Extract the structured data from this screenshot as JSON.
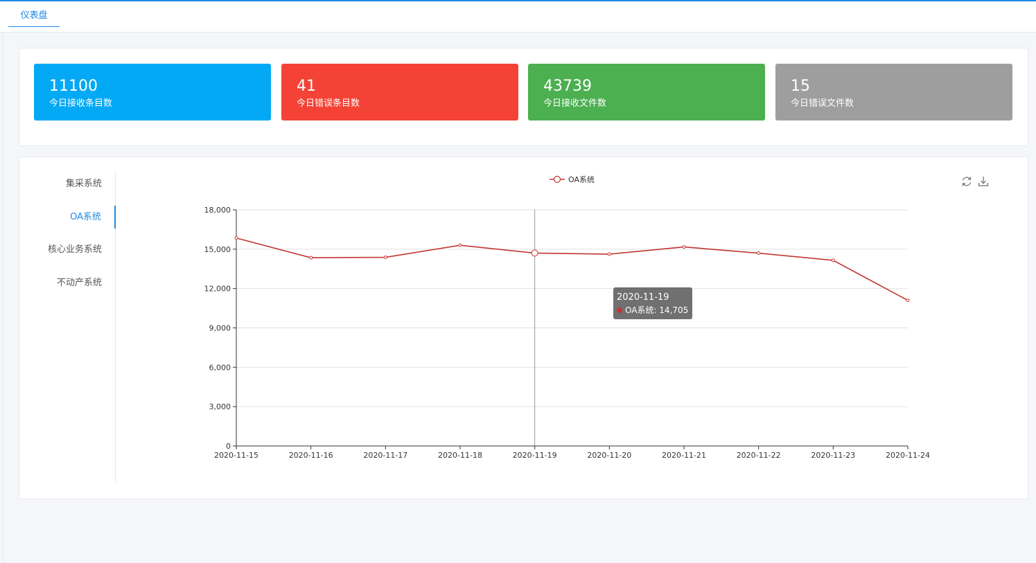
{
  "header": {
    "tab_label": "仪表盘"
  },
  "stats": [
    {
      "value": "11100",
      "label": "今日接收条目数",
      "color": "#03a9f4"
    },
    {
      "value": "41",
      "label": "今日错误条目数",
      "color": "#f44336"
    },
    {
      "value": "43739",
      "label": "今日接收文件数",
      "color": "#4caf50"
    },
    {
      "value": "15",
      "label": "今日错误文件数",
      "color": "#9e9e9e"
    }
  ],
  "systems": {
    "items": [
      "集采系统",
      "OA系统",
      "核心业务系统",
      "不动产系统"
    ],
    "active_index": 1
  },
  "toolbox": {
    "refresh_icon": "refresh-icon",
    "download_icon": "download-icon"
  },
  "chart_data": {
    "type": "line",
    "categories": [
      "2020-11-15",
      "2020-11-16",
      "2020-11-17",
      "2020-11-18",
      "2020-11-19",
      "2020-11-20",
      "2020-11-21",
      "2020-11-22",
      "2020-11-23",
      "2020-11-24"
    ],
    "series": [
      {
        "name": "OA系统",
        "values": [
          15850,
          14350,
          14380,
          15300,
          14705,
          14620,
          15170,
          14700,
          14150,
          11100
        ],
        "color": "#c23531"
      }
    ],
    "ylim": [
      0,
      18000
    ],
    "yticks": [
      "0",
      "3,000",
      "6,000",
      "9,000",
      "12,000",
      "15,000",
      "18,000"
    ],
    "ytick_values": [
      0,
      3000,
      6000,
      9000,
      12000,
      15000,
      18000
    ],
    "grid": true,
    "legend": "top-center",
    "tooltip": {
      "index": 4,
      "title": "2020-11-19",
      "text": "OA系统: 14,705"
    }
  }
}
